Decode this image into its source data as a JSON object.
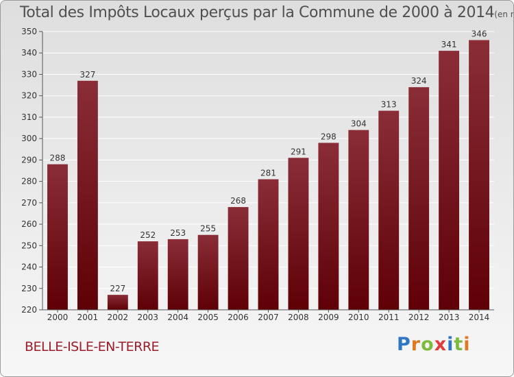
{
  "title": "Total des Impôts Locaux perçus par la Commune de 2000 à 2014",
  "unit": "(en milliers d'€)",
  "commune": "BELLE-ISLE-EN-TERRE",
  "logo": {
    "text": "Proxiti",
    "letter_colors": [
      "#2f77c2",
      "#e07a22",
      "#7dbb3c",
      "#e03a3a",
      "#2f77c2",
      "#7dbb3c",
      "#e07a22"
    ]
  },
  "colors": {
    "bar_top": "#8a2d37",
    "bar_bottom": "#5e0005",
    "grid": "#ffffff",
    "text": "#333333"
  },
  "chart_data": {
    "type": "bar",
    "categories": [
      "2000",
      "2001",
      "2002",
      "2003",
      "2004",
      "2005",
      "2006",
      "2007",
      "2008",
      "2009",
      "2010",
      "2011",
      "2012",
      "2013",
      "2014"
    ],
    "values": [
      288,
      327,
      227,
      252,
      253,
      255,
      268,
      281,
      291,
      298,
      304,
      313,
      324,
      341,
      346
    ],
    "ylim": [
      220,
      350
    ],
    "yticks": [
      220,
      230,
      240,
      250,
      260,
      270,
      280,
      290,
      300,
      310,
      320,
      330,
      340,
      350
    ],
    "grid": true,
    "legend": "none"
  }
}
